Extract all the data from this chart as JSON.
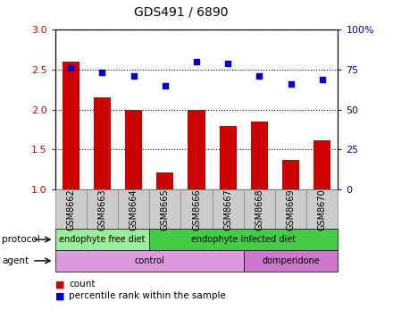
{
  "title": "GDS491 / 6890",
  "samples": [
    "GSM8662",
    "GSM8663",
    "GSM8664",
    "GSM8665",
    "GSM8666",
    "GSM8667",
    "GSM8668",
    "GSM8669",
    "GSM8670"
  ],
  "count_values": [
    2.6,
    2.15,
    2.0,
    1.22,
    2.0,
    1.8,
    1.85,
    1.37,
    1.62
  ],
  "percentile_values": [
    76,
    73,
    71,
    65,
    80,
    79,
    71,
    66,
    69
  ],
  "ylim_left": [
    1.0,
    3.0
  ],
  "ylim_right": [
    0,
    100
  ],
  "yticks_left": [
    1.0,
    1.5,
    2.0,
    2.5,
    3.0
  ],
  "yticks_right": [
    0,
    25,
    50,
    75,
    100
  ],
  "bar_color": "#cc0000",
  "dot_color": "#0000cc",
  "protocol_color_light": "#99ee99",
  "protocol_color_dark": "#44cc44",
  "agent_color_light": "#dd99dd",
  "agent_color_dark": "#cc77cc",
  "protocol_labels": [
    "endophyte free diet",
    "endophyte infected diet"
  ],
  "protocol_split": 3,
  "agent_labels": [
    "control",
    "domperidone"
  ],
  "agent_split": 6,
  "legend_count_label": "count",
  "legend_pct_label": "percentile rank within the sample",
  "tick_label_color_left": "#cc0000",
  "tick_label_color_right": "#0000cc",
  "sample_box_color": "#cccccc",
  "sample_box_edge": "#888888"
}
